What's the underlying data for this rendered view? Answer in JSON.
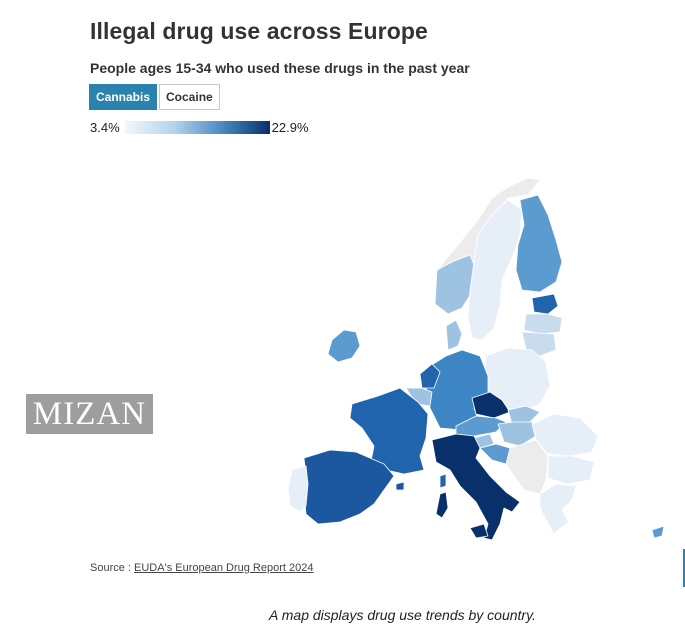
{
  "header": {
    "title": "Illegal drug use across Europe",
    "subtitle": "People ages 15-34 who used these drugs in the past year"
  },
  "tabs": [
    {
      "label": "Cannabis",
      "active": true
    },
    {
      "label": "Cocaine",
      "active": false
    }
  ],
  "legend": {
    "min_label": "3.4%",
    "max_label": "22.9%",
    "color_low": "#f2f7fc",
    "color_high": "#08306b"
  },
  "watermark": {
    "text": "MIZAN"
  },
  "footer": {
    "source_prefix": "Source : ",
    "source_link": "EUDA's European Drug Report 2024",
    "caption": "A map displays drug use trends by country."
  },
  "colors": {
    "accent": "#2a82ad",
    "lightest": "#e6eff8",
    "light": "#c8dcee",
    "light_mid": "#9ec3e2",
    "mid": "#5b9bd0",
    "mid_dark": "#3e85c4",
    "dark": "#1f64ad",
    "darker": "#1b58a0",
    "darkest": "#08306b",
    "no_data": "#ececec",
    "border": "#ffffff"
  }
}
